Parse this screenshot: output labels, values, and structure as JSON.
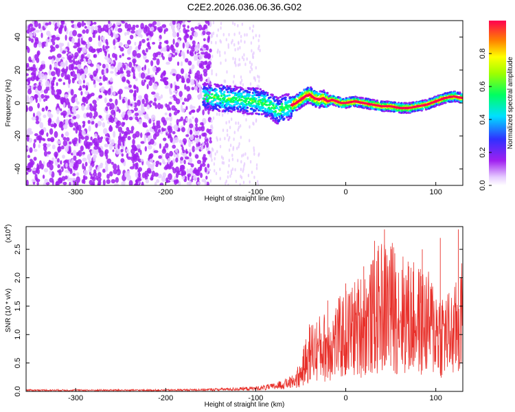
{
  "title": "C2E2.2026.036.06.36.G02",
  "chart_data": [
    {
      "type": "heatmap",
      "xlabel": "Height of straight line (km)",
      "ylabel": "Frequency (Hz)",
      "xlim": [
        -355,
        130
      ],
      "ylim": [
        -50,
        50
      ],
      "x_ticks": [
        -300,
        -200,
        -100,
        0,
        100
      ],
      "x_tick_labels": [
        "-300",
        "-200",
        "-100",
        "0",
        "100"
      ],
      "y_ticks": [
        -40,
        -20,
        0,
        20,
        40
      ],
      "y_tick_labels": [
        "-40",
        "-20",
        "0",
        "20",
        "40"
      ],
      "colorbar": {
        "label": "Normalized spectral amplitude",
        "range": [
          0,
          1
        ],
        "ticks": [
          0.0,
          0.2,
          0.4,
          0.6,
          0.8
        ],
        "tick_labels": [
          "0.0",
          "0.2",
          "0.4",
          "0.6",
          "0.8"
        ]
      },
      "signal_track": {
        "description": "frequency of strongest component vs height",
        "x": [
          -155,
          -140,
          -120,
          -100,
          -90,
          -80,
          -75,
          -70,
          -62,
          -55,
          -50,
          -45,
          -40,
          -35,
          -30,
          -25,
          -20,
          -15,
          -10,
          -5,
          0,
          10,
          20,
          30,
          40,
          50,
          60,
          70,
          80,
          90,
          100,
          110,
          120,
          130
        ],
        "y": [
          4,
          3,
          2,
          1,
          0,
          -3,
          -5,
          -3,
          -2,
          0,
          2,
          4,
          5,
          3,
          2,
          3,
          1,
          2,
          1,
          0,
          0,
          1,
          0,
          -1,
          -2,
          -2,
          -3,
          -3,
          -2,
          -1,
          1,
          3,
          4,
          3
        ]
      }
    },
    {
      "type": "line",
      "xlabel": "Height of straight line (km)",
      "ylabel": "SNR (10 * v/v)",
      "y_scale_label": "(x10",
      "y_scale_exponent": "4",
      "y_scale_close": ")",
      "xlim": [
        -355,
        130
      ],
      "ylim": [
        0,
        2.9
      ],
      "x_ticks": [
        -300,
        -200,
        -100,
        0,
        100
      ],
      "x_tick_labels": [
        "-300",
        "-200",
        "-100",
        "0",
        "100"
      ],
      "y_ticks": [
        0.0,
        0.5,
        1.0,
        1.5,
        2.0,
        2.5
      ],
      "y_tick_labels": [
        "0.0",
        "0.5",
        "1.0",
        "1.5",
        "2.0",
        "2.5"
      ],
      "series": [
        {
          "name": "SNR",
          "color": "#e8302a",
          "x": [
            -355,
            -300,
            -250,
            -200,
            -150,
            -120,
            -100,
            -80,
            -60,
            -50,
            -45,
            -40,
            -30,
            -20,
            -10,
            0,
            10,
            20,
            30,
            40,
            50,
            60,
            70,
            80,
            90,
            100,
            110,
            120,
            125,
            130
          ],
          "y": [
            0.02,
            0.02,
            0.02,
            0.02,
            0.03,
            0.04,
            0.05,
            0.08,
            0.15,
            0.3,
            0.5,
            0.7,
            0.75,
            0.8,
            0.9,
            1.0,
            1.1,
            1.2,
            1.3,
            1.5,
            1.5,
            1.4,
            1.3,
            1.25,
            1.2,
            1.1,
            1.0,
            1.0,
            1.2,
            1.3
          ],
          "peak_x": [
            -40,
            -20,
            0,
            20,
            32,
            43,
            50,
            70,
            85,
            105,
            125
          ],
          "peak_y": [
            1.0,
            1.6,
            1.9,
            2.2,
            2.65,
            2.85,
            2.55,
            2.2,
            2.5,
            2.7,
            2.85
          ]
        }
      ]
    }
  ]
}
